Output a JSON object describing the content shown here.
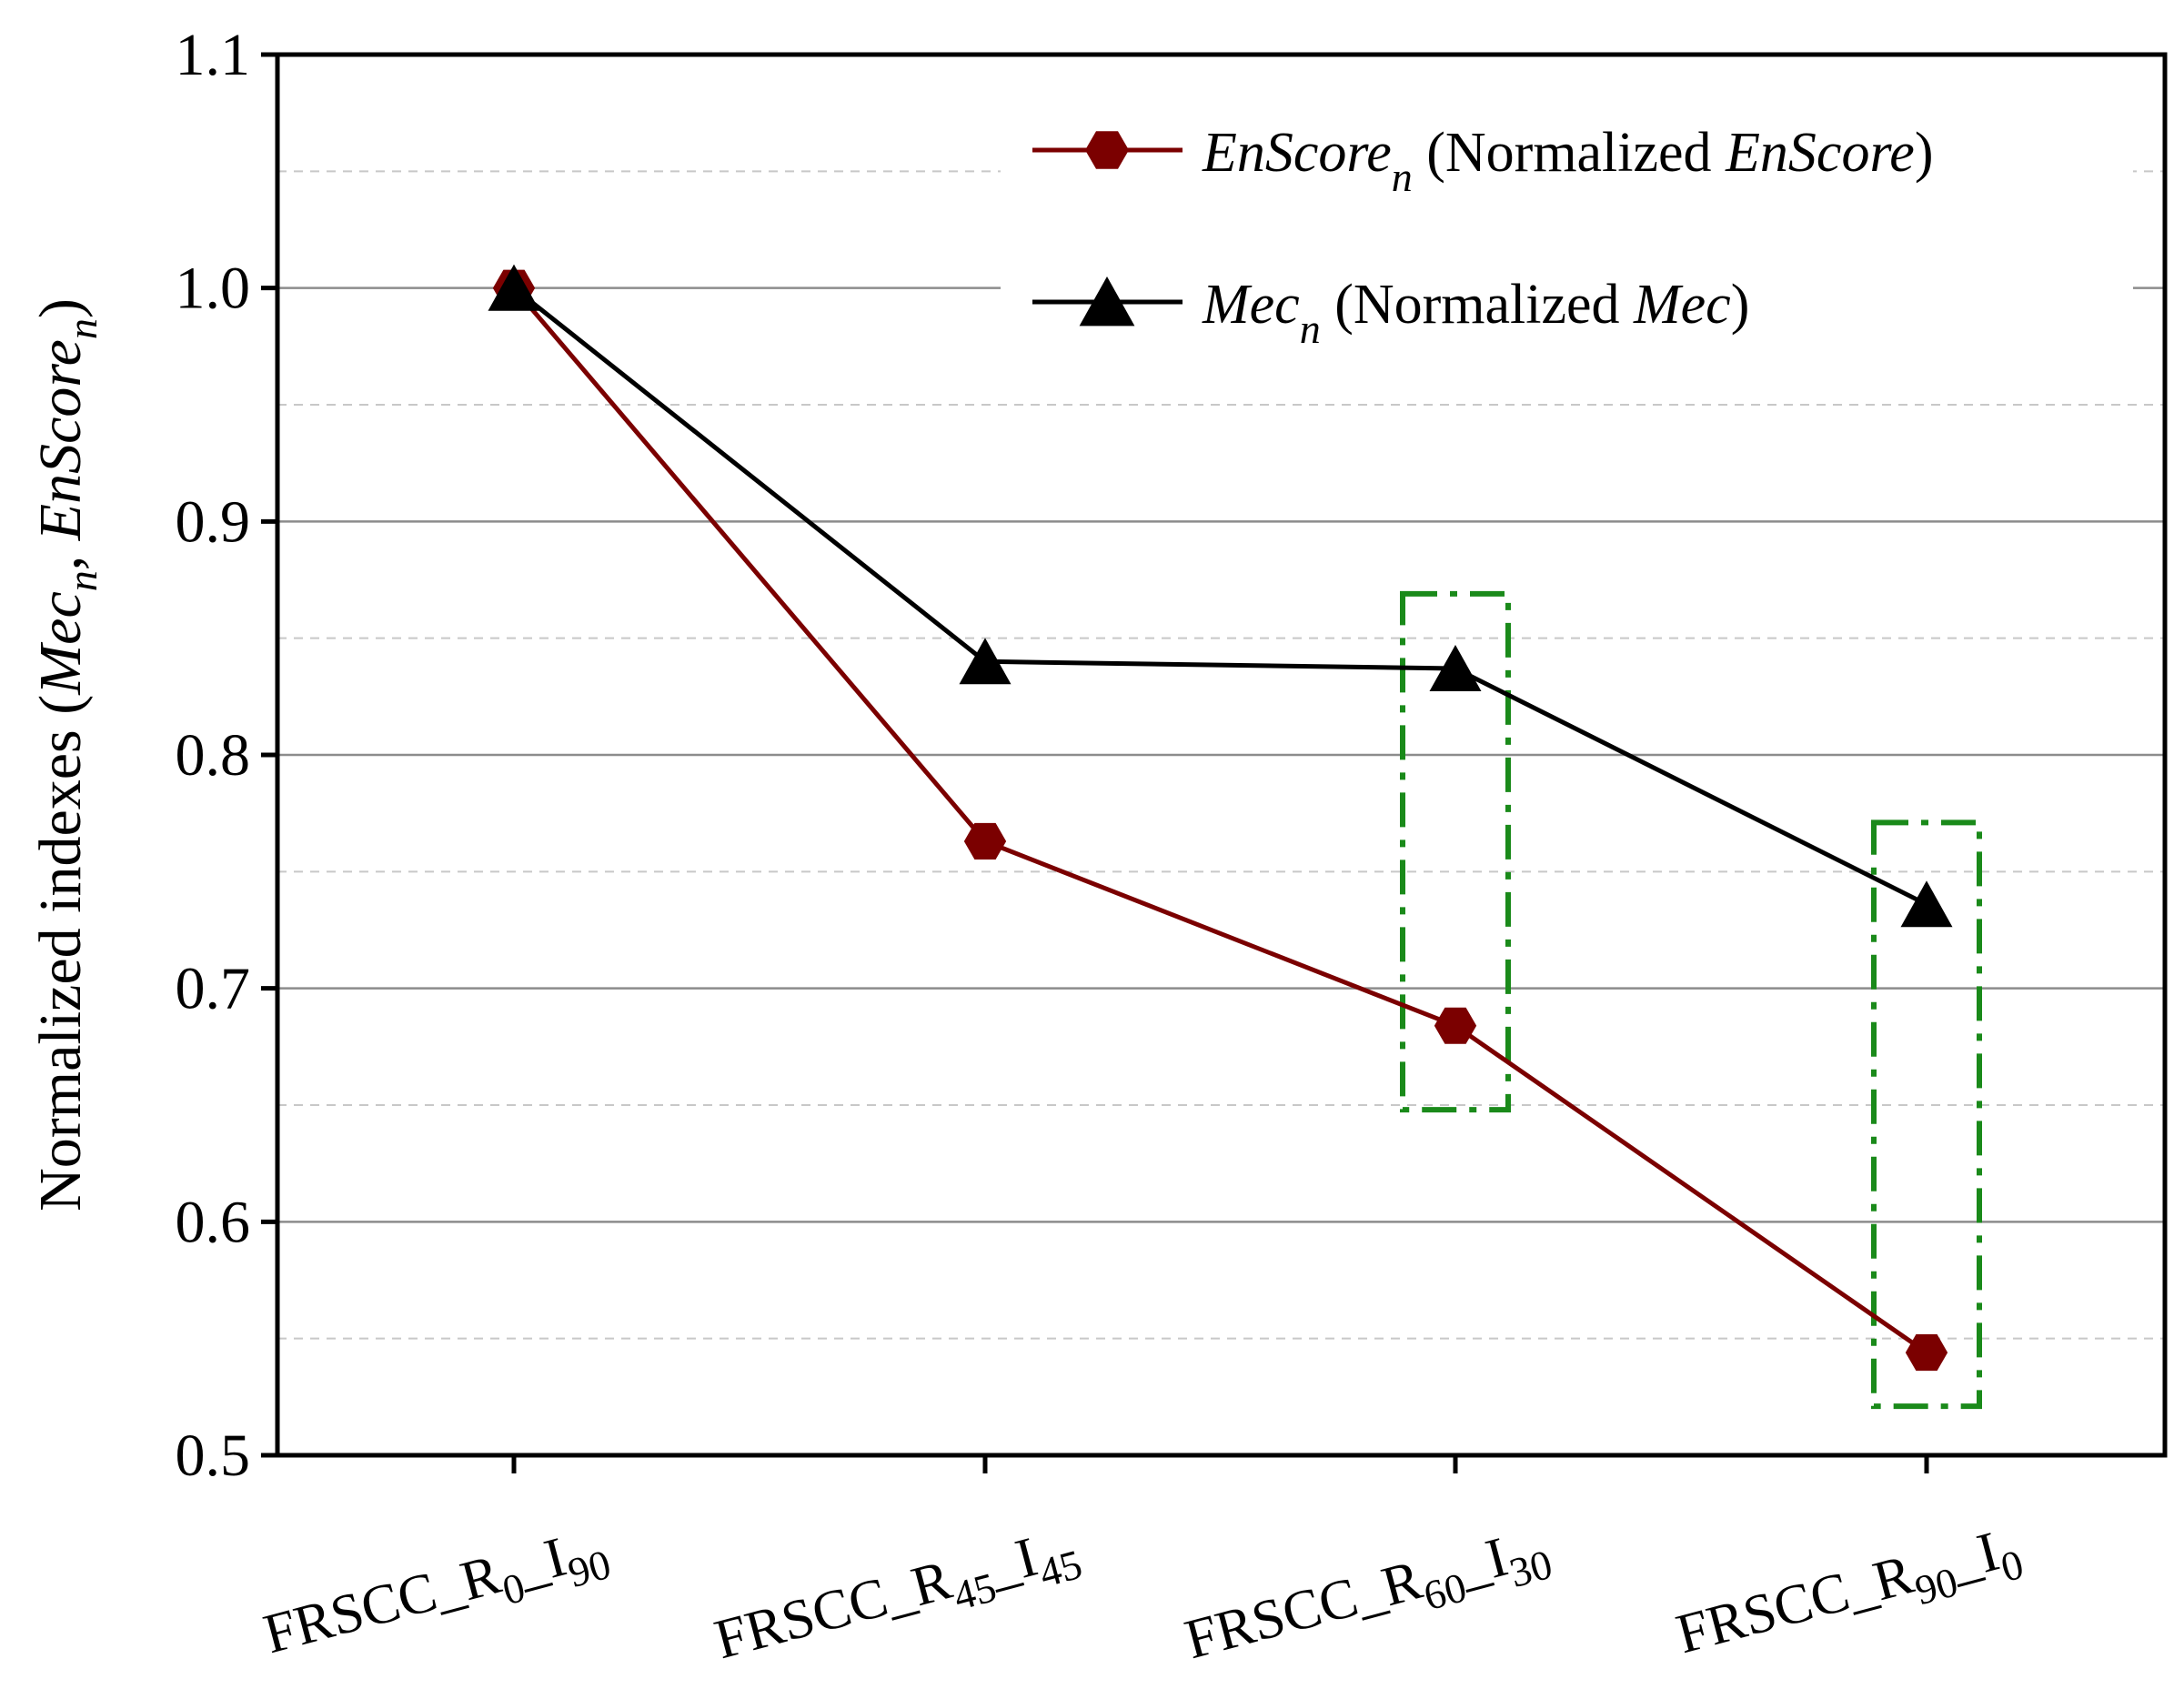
{
  "chart_data": {
    "type": "line",
    "title": "",
    "xlabel": "",
    "ylabel": {
      "prefix": "Normalized indexes (",
      "term1": "Mec",
      "term1_sub": "n",
      "sep": ", ",
      "term2": "EnScore",
      "term2_sub": "n",
      "suffix": ")"
    },
    "ylim": [
      0.5,
      1.1
    ],
    "yticks": [
      "0.5",
      "0.6",
      "0.7",
      "0.8",
      "0.9",
      "1.0",
      "1.1"
    ],
    "grid": {
      "major": true,
      "minor_dashed": true
    },
    "categories": [
      {
        "main": "FRSCC_R",
        "sub1": "0",
        "mid": "_I",
        "sub2": "90"
      },
      {
        "main": "FRSCC_R",
        "sub1": "45",
        "mid": "_I",
        "sub2": "45"
      },
      {
        "main": "FRSCC_R",
        "sub1": "60",
        "mid": "_I",
        "sub2": "30"
      },
      {
        "main": "FRSCC_R",
        "sub1": "90",
        "mid": "_I",
        "sub2": "0"
      }
    ],
    "series": [
      {
        "name": "EnScore_n (Normalized EnScore)",
        "marker": "hexagon",
        "color": "#7b0000",
        "values": [
          1.0,
          0.763,
          0.684,
          0.544
        ]
      },
      {
        "name": "Mec_n (Normalized Mec)",
        "marker": "triangle",
        "color": "#000000",
        "values": [
          1.0,
          0.84,
          0.837,
          0.736
        ]
      }
    ],
    "legend": {
      "placement": "top-right",
      "entries": [
        {
          "term": "EnScore",
          "sub": "n",
          "pre": " (Normalized ",
          "term2": "EnScore",
          "post": ")"
        },
        {
          "term": "Mec",
          "sub": "n",
          "pre": " (Normalized ",
          "term2": "Mec",
          "post": ")"
        }
      ]
    },
    "highlight_boxes": [
      {
        "category_index": 2,
        "y_range": [
          0.648,
          0.869
        ],
        "color": "#1a8a1a"
      },
      {
        "category_index": 3,
        "y_range": [
          0.521,
          0.771
        ],
        "color": "#1a8a1a"
      }
    ]
  }
}
